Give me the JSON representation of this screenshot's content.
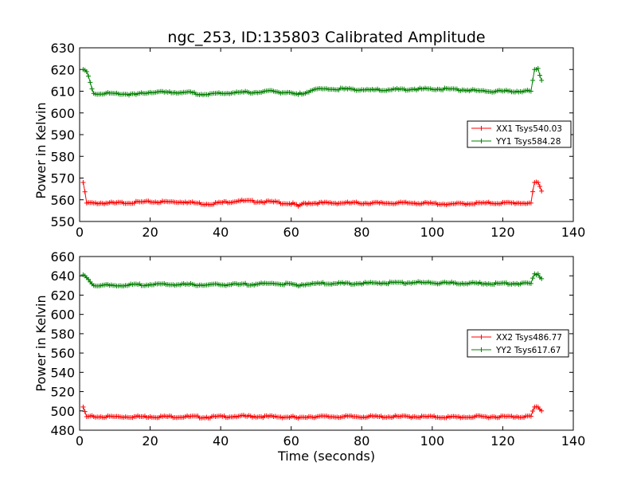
{
  "figure": {
    "title": "ngc_253, ID:135803 Calibrated Amplitude",
    "xlabel": "Time (seconds)"
  },
  "colors": {
    "xx": "#ff0000",
    "yy": "#008000",
    "axes": "#000000"
  },
  "chart_data": [
    {
      "type": "line",
      "marker": "plus",
      "ylabel": "Power in Kelvin",
      "xlim": [
        0,
        140
      ],
      "ylim": [
        550,
        630
      ],
      "xticks": [
        0,
        20,
        40,
        60,
        80,
        100,
        120,
        140
      ],
      "yticks": [
        550,
        560,
        570,
        580,
        590,
        600,
        610,
        620,
        630
      ],
      "grid": false,
      "legend_position": "center-right",
      "series": [
        {
          "name": "XX1 Tsys540.03",
          "color": "#ff0000",
          "x": [
            1,
            2,
            4,
            10,
            20,
            30,
            36,
            45,
            55,
            61,
            62,
            63,
            65,
            75,
            85,
            95,
            105,
            115,
            124,
            128,
            129,
            130,
            131
          ],
          "y": [
            568,
            558.5,
            558.5,
            558.5,
            559,
            559,
            558,
            559.5,
            559,
            558,
            557,
            558,
            558.5,
            558.5,
            558.5,
            558.5,
            558,
            558.5,
            558.5,
            558.5,
            568,
            568,
            564
          ]
        },
        {
          "name": "YY1 Tsys584.28",
          "color": "#008000",
          "x": [
            1,
            2,
            4,
            10,
            16,
            20,
            30,
            36,
            45,
            50,
            55,
            62,
            67,
            75,
            85,
            95,
            105,
            115,
            124,
            128,
            129,
            130,
            131
          ],
          "y": [
            620,
            619,
            609,
            609,
            608.5,
            609.5,
            609.5,
            608.5,
            609.5,
            609.5,
            610,
            608.5,
            611,
            611,
            610.5,
            611,
            611,
            610,
            610,
            610,
            620,
            620.5,
            615
          ]
        }
      ]
    },
    {
      "type": "line",
      "marker": "plus",
      "ylabel": "Power in Kelvin",
      "xlabel": "Time (seconds)",
      "xlim": [
        0,
        140
      ],
      "ylim": [
        480,
        660
      ],
      "xticks": [
        0,
        20,
        40,
        60,
        80,
        100,
        120,
        140
      ],
      "yticks": [
        480,
        500,
        520,
        540,
        560,
        580,
        600,
        620,
        640,
        660
      ],
      "grid": false,
      "legend_position": "center-right",
      "series": [
        {
          "name": "XX2 Tsys486.77",
          "color": "#ff0000",
          "x": [
            1,
            2,
            4,
            10,
            20,
            30,
            36,
            45,
            55,
            61,
            62,
            63,
            65,
            75,
            85,
            95,
            105,
            115,
            124,
            128,
            129,
            130,
            131
          ],
          "y": [
            504,
            494,
            494,
            494,
            494,
            494,
            493.5,
            494.5,
            494,
            493.5,
            492.5,
            493.5,
            494,
            494,
            494,
            494,
            493.5,
            494,
            494,
            494.5,
            504,
            504,
            500
          ]
        },
        {
          "name": "YY2 Tsys617.67",
          "color": "#008000",
          "x": [
            1,
            2,
            4,
            10,
            20,
            30,
            36,
            45,
            55,
            61,
            62,
            63,
            67,
            75,
            85,
            95,
            105,
            115,
            124,
            128,
            129,
            130,
            131
          ],
          "y": [
            641,
            638,
            630,
            630,
            631,
            631,
            630.5,
            631,
            632,
            631,
            629.5,
            631,
            632,
            632,
            632.5,
            633,
            632.5,
            632,
            632,
            632,
            642,
            642,
            637
          ]
        }
      ]
    }
  ]
}
